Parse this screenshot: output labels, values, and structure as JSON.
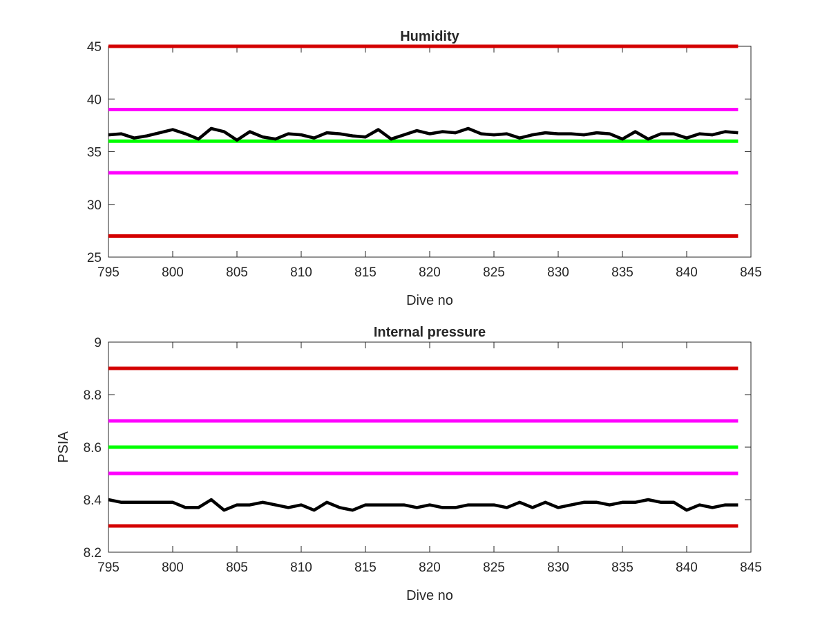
{
  "chart_data": [
    {
      "type": "line",
      "title": "Humidity",
      "xlabel": "Dive no",
      "ylabel": "",
      "xlim": [
        795,
        845
      ],
      "ylim": [
        25,
        45
      ],
      "xticks": [
        "795",
        "800",
        "805",
        "810",
        "815",
        "820",
        "825",
        "830",
        "835",
        "840",
        "845"
      ],
      "yticks": [
        "25",
        "30",
        "35",
        "40",
        "45"
      ],
      "grid": false,
      "series": [
        {
          "role": "limit",
          "color": "#d40000",
          "x": [
            795,
            844
          ],
          "y": [
            45,
            45
          ]
        },
        {
          "role": "warning",
          "color": "#ff00ff",
          "x": [
            795,
            844
          ],
          "y": [
            39,
            39
          ]
        },
        {
          "role": "nominal",
          "color": "#00ff00",
          "x": [
            795,
            844
          ],
          "y": [
            36,
            36
          ]
        },
        {
          "role": "warning",
          "color": "#ff00ff",
          "x": [
            795,
            844
          ],
          "y": [
            33,
            33
          ]
        },
        {
          "role": "limit",
          "color": "#d40000",
          "x": [
            795,
            844
          ],
          "y": [
            27,
            27
          ]
        },
        {
          "role": "measured",
          "color": "#000000",
          "x": [
            795,
            796,
            797,
            798,
            799,
            800,
            801,
            802,
            803,
            804,
            805,
            806,
            807,
            808,
            809,
            810,
            811,
            812,
            813,
            814,
            815,
            816,
            817,
            818,
            819,
            820,
            821,
            822,
            823,
            824,
            825,
            826,
            827,
            828,
            829,
            830,
            831,
            832,
            833,
            834,
            835,
            836,
            837,
            838,
            839,
            840,
            841,
            842,
            843,
            844
          ],
          "y": [
            36.6,
            36.7,
            36.3,
            36.5,
            36.8,
            37.1,
            36.7,
            36.2,
            37.2,
            36.9,
            36.1,
            36.9,
            36.4,
            36.2,
            36.7,
            36.6,
            36.3,
            36.8,
            36.7,
            36.5,
            36.4,
            37.1,
            36.2,
            36.6,
            37.0,
            36.7,
            36.9,
            36.8,
            37.2,
            36.7,
            36.6,
            36.7,
            36.3,
            36.6,
            36.8,
            36.7,
            36.7,
            36.6,
            36.8,
            36.7,
            36.2,
            36.9,
            36.2,
            36.7,
            36.7,
            36.3,
            36.7,
            36.6,
            36.9,
            36.8
          ]
        }
      ]
    },
    {
      "type": "line",
      "title": "Internal pressure",
      "xlabel": "Dive no",
      "ylabel": "PSIA",
      "xlim": [
        795,
        845
      ],
      "ylim": [
        8.2,
        9
      ],
      "xticks": [
        "795",
        "800",
        "805",
        "810",
        "815",
        "820",
        "825",
        "830",
        "835",
        "840",
        "845"
      ],
      "yticks": [
        "8.2",
        "8.4",
        "8.6",
        "8.8",
        "9"
      ],
      "grid": false,
      "series": [
        {
          "role": "limit",
          "color": "#d40000",
          "x": [
            795,
            844
          ],
          "y": [
            8.9,
            8.9
          ]
        },
        {
          "role": "warning",
          "color": "#ff00ff",
          "x": [
            795,
            844
          ],
          "y": [
            8.7,
            8.7
          ]
        },
        {
          "role": "nominal",
          "color": "#00ff00",
          "x": [
            795,
            844
          ],
          "y": [
            8.6,
            8.6
          ]
        },
        {
          "role": "warning",
          "color": "#ff00ff",
          "x": [
            795,
            844
          ],
          "y": [
            8.5,
            8.5
          ]
        },
        {
          "role": "limit",
          "color": "#d40000",
          "x": [
            795,
            844
          ],
          "y": [
            8.3,
            8.3
          ]
        },
        {
          "role": "measured",
          "color": "#000000",
          "x": [
            795,
            796,
            797,
            798,
            799,
            800,
            801,
            802,
            803,
            804,
            805,
            806,
            807,
            808,
            809,
            810,
            811,
            812,
            813,
            814,
            815,
            816,
            817,
            818,
            819,
            820,
            821,
            822,
            823,
            824,
            825,
            826,
            827,
            828,
            829,
            830,
            831,
            832,
            833,
            834,
            835,
            836,
            837,
            838,
            839,
            840,
            841,
            842,
            843,
            844
          ],
          "y": [
            8.4,
            8.39,
            8.39,
            8.39,
            8.39,
            8.39,
            8.37,
            8.37,
            8.4,
            8.36,
            8.38,
            8.38,
            8.39,
            8.38,
            8.37,
            8.38,
            8.36,
            8.39,
            8.37,
            8.36,
            8.38,
            8.38,
            8.38,
            8.38,
            8.37,
            8.38,
            8.37,
            8.37,
            8.38,
            8.38,
            8.38,
            8.37,
            8.39,
            8.37,
            8.39,
            8.37,
            8.38,
            8.39,
            8.39,
            8.38,
            8.39,
            8.39,
            8.4,
            8.39,
            8.39,
            8.36,
            8.38,
            8.37,
            8.38,
            8.38
          ]
        }
      ]
    }
  ]
}
